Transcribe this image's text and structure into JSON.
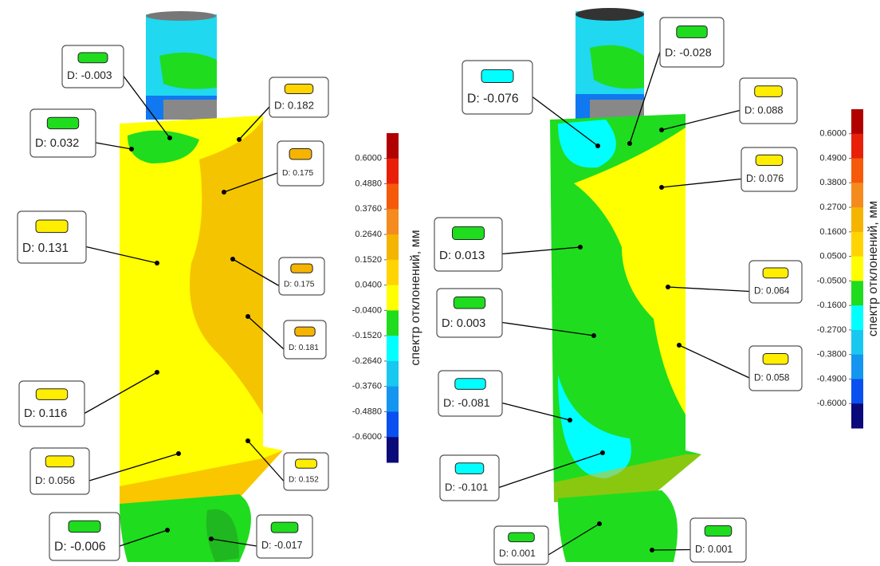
{
  "panels": [
    {
      "callouts": [
        {
          "text": "D: -0.003",
          "color": "#1fdc1f"
        },
        {
          "text": "D: 0.182",
          "color": "#ffd400"
        },
        {
          "text": "D: 0.032",
          "color": "#1fdc1f"
        },
        {
          "text": "D: 0.175",
          "color": "#f5b400"
        },
        {
          "text": "D: 0.131",
          "color": "#ffee00"
        },
        {
          "text": "D: 0.175",
          "color": "#f5b400"
        },
        {
          "text": "D: 0.181",
          "color": "#f5b400"
        },
        {
          "text": "D: 0.116",
          "color": "#ffee00"
        },
        {
          "text": "D: 0.056",
          "color": "#ffee00"
        },
        {
          "text": "D: 0.152",
          "color": "#ffee00"
        },
        {
          "text": "D: -0.006",
          "color": "#1fdc1f"
        },
        {
          "text": "D: -0.017",
          "color": "#1fdc1f"
        }
      ],
      "scale": {
        "axis_label": "спектр отклонений, мм",
        "colors": [
          "#b00000",
          "#e8200a",
          "#f55a0a",
          "#f58a1e",
          "#f5b400",
          "#ffd400",
          "#ffff00",
          "#1fdc1f",
          "#00ffff",
          "#18c8f0",
          "#1496f0",
          "#0a50f0",
          "#0a0a7a"
        ],
        "ticks": [
          {
            "value": 0.6,
            "label": "0.6000"
          },
          {
            "value": 0.488,
            "label": "0.4880"
          },
          {
            "value": 0.376,
            "label": "0.3760"
          },
          {
            "value": 0.264,
            "label": "0.2640"
          },
          {
            "value": 0.152,
            "label": "0.1520"
          },
          {
            "value": 0.04,
            "label": "0.0400"
          },
          {
            "value": -0.04,
            "label": "-0.0400"
          },
          {
            "value": -0.152,
            "label": "-0.1520"
          },
          {
            "value": -0.264,
            "label": "-0.2640"
          },
          {
            "value": -0.376,
            "label": "-0.3760"
          },
          {
            "value": -0.488,
            "label": "-0.4880"
          },
          {
            "value": -0.6,
            "label": "-0.6000"
          }
        ]
      }
    },
    {
      "callouts": [
        {
          "text": "D: -0.076",
          "color": "#00ffff"
        },
        {
          "text": "D: -0.028",
          "color": "#1fdc1f"
        },
        {
          "text": "D: 0.088",
          "color": "#ffee00"
        },
        {
          "text": "D: 0.076",
          "color": "#ffee00"
        },
        {
          "text": "D: 0.013",
          "color": "#1fdc1f"
        },
        {
          "text": "D: 0.064",
          "color": "#ffee00"
        },
        {
          "text": "D: 0.003",
          "color": "#1fdc1f"
        },
        {
          "text": "D: 0.058",
          "color": "#ffee00"
        },
        {
          "text": "D: -0.081",
          "color": "#00ffff"
        },
        {
          "text": "D: -0.101",
          "color": "#00ffff"
        },
        {
          "text": "D: 0.001",
          "color": "#1fdc1f"
        },
        {
          "text": "D: 0.001",
          "color": "#1fdc1f"
        }
      ],
      "scale": {
        "axis_label": "спектр отклонений, мм",
        "colors": [
          "#b00000",
          "#e8200a",
          "#f55a0a",
          "#f58a1e",
          "#f5b400",
          "#ffd400",
          "#ffff00",
          "#1fdc1f",
          "#00ffff",
          "#18c8f0",
          "#1496f0",
          "#0a50f0",
          "#0a0a7a"
        ],
        "ticks": [
          {
            "value": 0.6,
            "label": "0.6000"
          },
          {
            "value": 0.49,
            "label": "0.4900"
          },
          {
            "value": 0.38,
            "label": "0.3800"
          },
          {
            "value": 0.27,
            "label": "0.2700"
          },
          {
            "value": 0.16,
            "label": "0.1600"
          },
          {
            "value": 0.05,
            "label": "0.0500"
          },
          {
            "value": -0.05,
            "label": "-0.0500"
          },
          {
            "value": -0.16,
            "label": "-0.1600"
          },
          {
            "value": -0.27,
            "label": "-0.2700"
          },
          {
            "value": -0.38,
            "label": "-0.3800"
          },
          {
            "value": -0.49,
            "label": "-0.4900"
          },
          {
            "value": -0.6,
            "label": "-0.6000"
          }
        ]
      }
    }
  ]
}
